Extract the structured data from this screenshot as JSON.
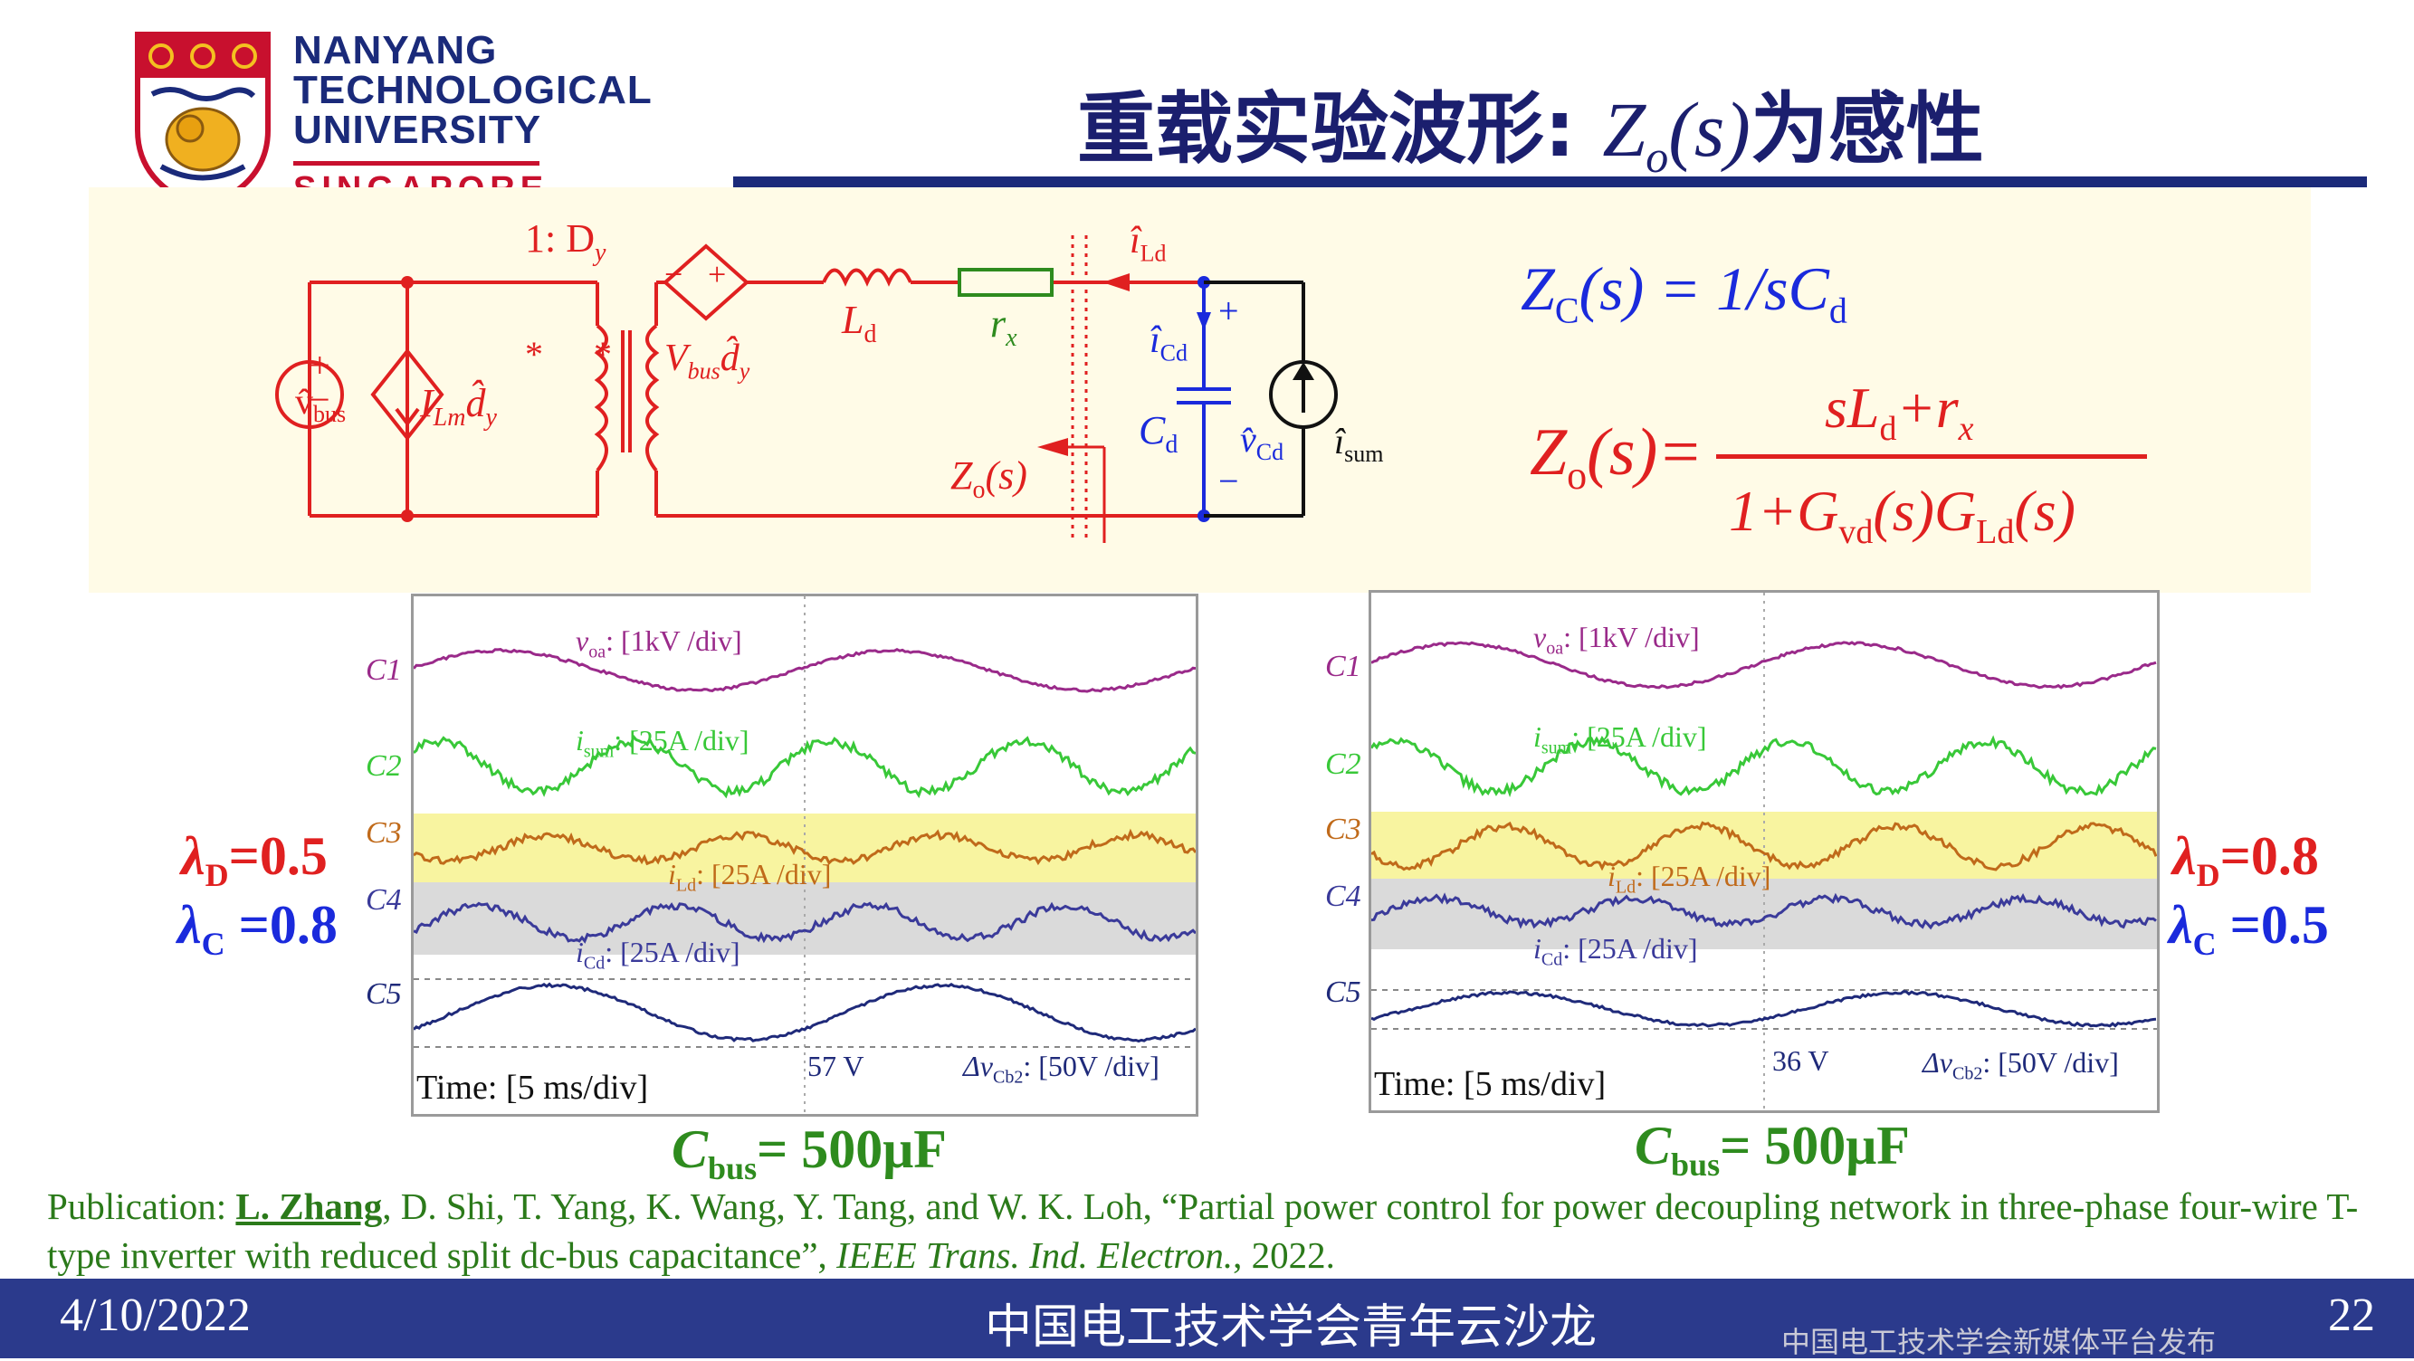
{
  "logo": {
    "line1": "NANYANG",
    "line2": "TECHNOLOGICAL",
    "line3": "UNIVERSITY",
    "line4": "SINGAPORE"
  },
  "title": {
    "cn_prefix": "重载实验波形: ",
    "z": "Z",
    "sub": "o",
    "paren": "(s)",
    "cn_suffix": "为感性"
  },
  "circuit": {
    "ratio": "1: D",
    "ratio_sub": "y",
    "vbus_source": "v̂",
    "vbus_sub": "bus",
    "ilm": "I",
    "ilm_sub": "Lm",
    "dy": "d̂",
    "dy_sub": "y",
    "dep_source": "V",
    "dep_sub": "bus",
    "ld": "L",
    "ld_sub": "d",
    "rx": "r",
    "rx_sub": "x",
    "ild": "î",
    "ild_sub": "Ld",
    "icd": "î",
    "icd_sub": "Cd",
    "cd": "C",
    "cd_sub": "d",
    "vcd": "v̂",
    "vcd_sub": "Cd",
    "isum": "î",
    "isum_sub": "sum",
    "zo": "Z",
    "zo_sub": "o",
    "zo_arg": "(s)",
    "plus": "+",
    "minus": "−",
    "star": "*"
  },
  "equations": {
    "zc_lhs": "Z",
    "zc_sub": "C",
    "zc_arg": "(s) = 1/sC",
    "zc_tail_sub": "d",
    "zo_lhs": "Z",
    "zo_sub": "o",
    "zo_arg": "(s)=",
    "num_a": "sL",
    "num_a_sub": "d",
    "num_b": "+r",
    "num_b_sub": "x",
    "den_a": "1+G",
    "den_a_sub": "vd",
    "den_b": "(s)G",
    "den_b_sub": "Ld",
    "den_c": "(s)"
  },
  "scope_left": {
    "ch_labels": [
      "C1",
      "C2",
      "C3",
      "C4",
      "C5"
    ],
    "voa": "v",
    "voa_sub": "oa",
    "voa_scale": ": [1kV /div]",
    "isum": "i",
    "isum_sub": "sum",
    "isum_scale": ": [25A /div]",
    "ild": "i",
    "ild_sub": "Ld",
    "ild_scale": ": [25A /div]",
    "icd": "i",
    "icd_sub": "Cd",
    "icd_scale": ": [25A /div]",
    "time": "Time: [5 ms/div]",
    "delta_v": "57 V",
    "dv_label": "Δv",
    "dv_sub": "Cb2",
    "dv_scale": ": [50V /div]"
  },
  "scope_right": {
    "ch_labels": [
      "C1",
      "C2",
      "C3",
      "C4",
      "C5"
    ],
    "voa": "v",
    "voa_sub": "oa",
    "voa_scale": ": [1kV /div]",
    "isum": "i",
    "isum_sub": "sum",
    "isum_scale": ": [25A /div]",
    "ild": "i",
    "ild_sub": "Ld",
    "ild_scale": ": [25A /div]",
    "icd": "i",
    "icd_sub": "Cd",
    "icd_scale": ": [25A /div]",
    "time": "Time: [5 ms/div]",
    "delta_v": "36 V",
    "dv_label": "Δv",
    "dv_sub": "Cb2",
    "dv_scale": ": [50V /div]"
  },
  "left_params": {
    "lambda": "λ",
    "d_sub": "D",
    "d_val": "=0.5",
    "c_sub": "C",
    "c_val": " =0.8",
    "cbus": "C",
    "cbus_sub": "bus",
    "cbus_val": "= 500μF"
  },
  "right_params": {
    "lambda": "λ",
    "d_sub": "D",
    "d_val": "=0.8",
    "c_sub": "C",
    "c_val": " =0.5",
    "cbus": "C",
    "cbus_sub": "bus",
    "cbus_val": "= 500μF"
  },
  "publication": {
    "prefix": "Publication: ",
    "author": "L. Zhang",
    "rest": ", D. Shi, T. Yang, K. Wang, Y. Tang, and W. K. Loh, “Partial power control for power decoupling network in three-phase four-wire T-type inverter with reduced split dc-bus capacitance”, ",
    "journal": "IEEE Trans. Ind. Electron.",
    "year": ", 2022."
  },
  "footer": {
    "date": "4/10/2022",
    "center": "中国电工技术学会青年云沙龙",
    "small": "中国电工技术学会新媒体平台发布",
    "page": "22"
  },
  "colors": {
    "navy": "#1b2a7a",
    "red": "#e02020",
    "blue": "#1a2adc",
    "green": "#2e8b1e",
    "purple": "#9a2a8a",
    "wave_green": "#38c838",
    "wave_orange": "#c06a1a",
    "wave_blue": "#3a3a9a",
    "wave_navy": "#1f2a7a"
  }
}
